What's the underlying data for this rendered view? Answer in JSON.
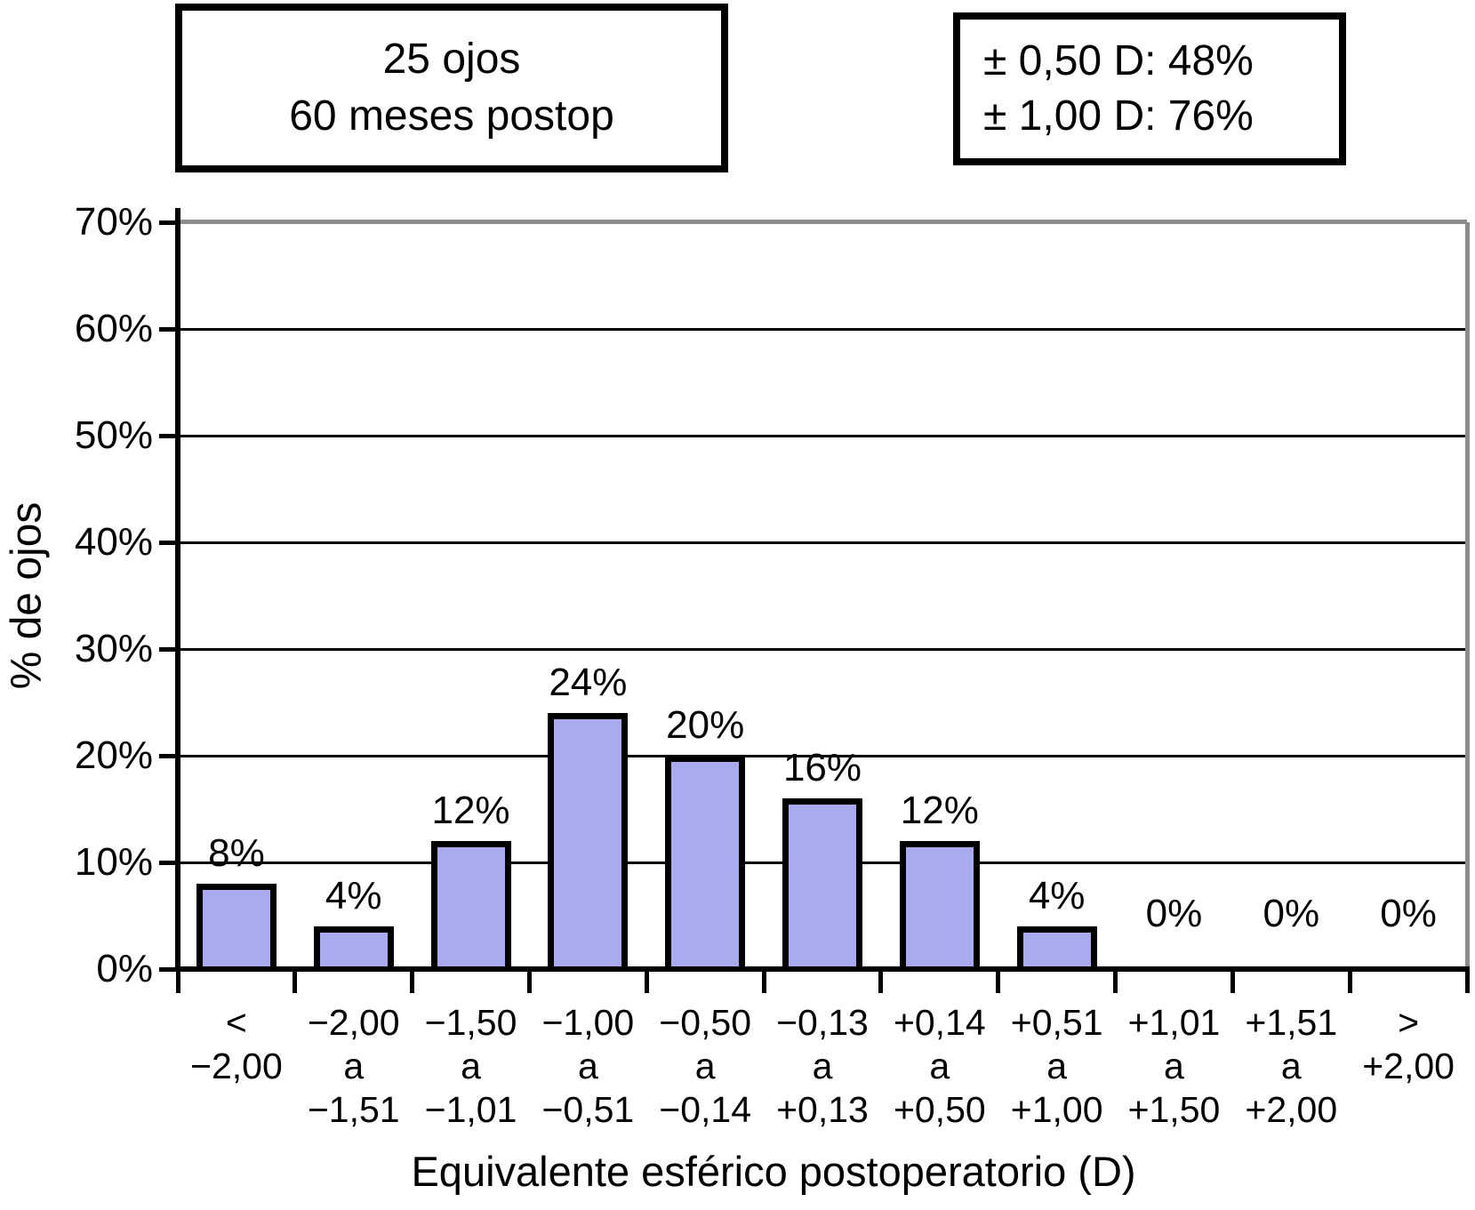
{
  "figure": {
    "annotation_box": {
      "lines": [
        "25 ojos",
        "60 meses postop"
      ]
    },
    "summary_box": {
      "lines": [
        "± 0,50 D: 48%",
        "± 1,00 D: 76%"
      ]
    }
  },
  "chart_data": {
    "type": "bar",
    "title": "25 ojos, 60 meses postop",
    "xlabel": "Equivalente esférico postoperatorio (D)",
    "ylabel": "% de ojos",
    "ylim": [
      0,
      70
    ],
    "ytick_step": 10,
    "ytick_labels": [
      "0%",
      "10%",
      "20%",
      "30%",
      "40%",
      "50%",
      "60%",
      "70%"
    ],
    "grid": true,
    "annotations": [
      "± 0,50 D: 48%",
      "± 1,00 D: 76%"
    ],
    "categories": [
      "< −2,00",
      "−2,00 a −1,51",
      "−1,50 a −1,01",
      "−1,00 a −0,51",
      "−0,50 a −0,14",
      "−0,13 a +0,13",
      "+0,14 a +0,50",
      "+0,51 a +1,00",
      "+1,01 a +1,50",
      "+1,51 a +2,00",
      "> +2,00"
    ],
    "category_lines": [
      [
        "<",
        "−2,00"
      ],
      [
        "−2,00",
        "a",
        "−1,51"
      ],
      [
        "−1,50",
        "a",
        "−1,01"
      ],
      [
        "−1,00",
        "a",
        "−0,51"
      ],
      [
        "−0,50",
        "a",
        "−0,14"
      ],
      [
        "−0,13",
        "a",
        "+0,13"
      ],
      [
        "+0,14",
        "a",
        "+0,50"
      ],
      [
        "+0,51",
        "a",
        "+1,00"
      ],
      [
        "+1,01",
        "a",
        "+1,50"
      ],
      [
        "+1,51",
        "a",
        "+2,00"
      ],
      [
        ">",
        "+2,00"
      ]
    ],
    "values": [
      8,
      4,
      12,
      24,
      20,
      16,
      12,
      4,
      0,
      0,
      0
    ],
    "bar_labels": [
      "8%",
      "4%",
      "12%",
      "24%",
      "20%",
      "16%",
      "12%",
      "4%",
      "0%",
      "0%",
      "0%"
    ],
    "colors": {
      "bar_fill": "#AAAAEE",
      "bar_border": "#000000",
      "grid_line": "#000000",
      "frame_line": "#8C8C8C"
    }
  }
}
